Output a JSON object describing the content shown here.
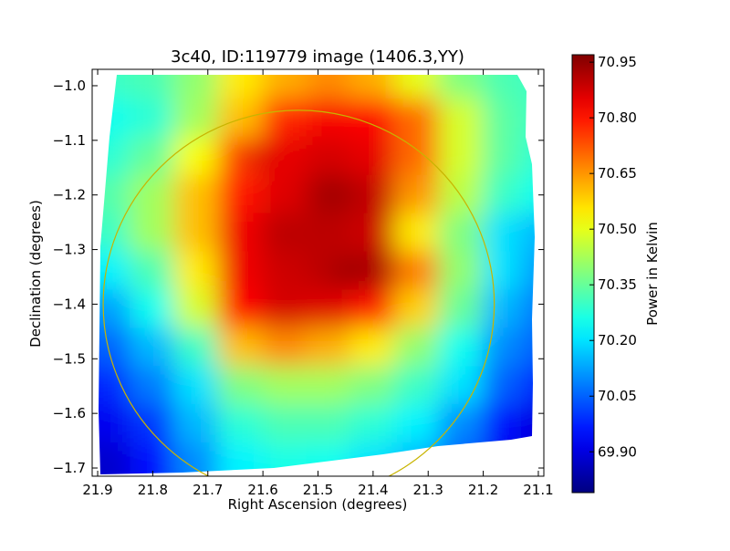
{
  "chart_data": {
    "type": "heatmap",
    "title": "3c40, ID:119779 image (1406.3,YY)",
    "xlabel": "Right Ascension (degrees)",
    "ylabel": "Declination (degrees)",
    "colorbar_label": "Power in Kelvin",
    "colormap": "jet",
    "xlim": [
      21.91,
      21.09
    ],
    "ylim": [
      -1.715,
      -0.97
    ],
    "x_ticks": [
      21.9,
      21.8,
      21.7,
      21.6,
      21.5,
      21.4,
      21.3,
      21.2,
      21.1
    ],
    "x_tick_labels": [
      "21.9",
      "21.8",
      "21.7",
      "21.6",
      "21.5",
      "21.4",
      "21.3",
      "21.2",
      "21.1"
    ],
    "y_ticks": [
      -1.0,
      -1.1,
      -1.2,
      -1.3,
      -1.4,
      -1.5,
      -1.6,
      -1.7
    ],
    "y_tick_labels": [
      "−1.0",
      "−1.1",
      "−1.2",
      "−1.3",
      "−1.4",
      "−1.5",
      "−1.6",
      "−1.7"
    ],
    "color_range": [
      69.79,
      70.97
    ],
    "colorbar_ticks": [
      69.9,
      70.05,
      70.2,
      70.35,
      70.5,
      70.65,
      70.8,
      70.95
    ],
    "colorbar_tick_labels": [
      "69.90",
      "70.05",
      "70.20",
      "70.35",
      "70.50",
      "70.65",
      "70.80",
      "70.95"
    ],
    "grid": false,
    "x_centers": [
      21.88,
      21.8,
      21.72,
      21.64,
      21.56,
      21.48,
      21.4,
      21.32,
      21.24,
      21.16,
      21.1
    ],
    "y_centers": [
      -0.99,
      -1.06,
      -1.13,
      -1.2,
      -1.27,
      -1.34,
      -1.41,
      -1.48,
      -1.55,
      -1.62,
      -1.69
    ],
    "values": [
      [
        70.3,
        70.32,
        70.4,
        70.55,
        70.62,
        70.66,
        70.62,
        70.5,
        70.38,
        70.32,
        70.3
      ],
      [
        70.25,
        70.28,
        70.42,
        70.6,
        70.78,
        70.83,
        70.82,
        70.7,
        70.48,
        70.34,
        70.3
      ],
      [
        70.28,
        70.35,
        70.52,
        70.74,
        70.85,
        70.87,
        70.85,
        70.7,
        70.48,
        70.34,
        70.28
      ],
      [
        70.33,
        70.42,
        70.6,
        70.8,
        70.86,
        70.92,
        70.9,
        70.65,
        70.45,
        70.3,
        70.25
      ],
      [
        70.3,
        70.42,
        70.6,
        70.84,
        70.9,
        70.9,
        70.88,
        70.55,
        70.38,
        70.2,
        70.15
      ],
      [
        70.22,
        70.32,
        70.55,
        70.84,
        70.88,
        70.9,
        70.92,
        70.68,
        70.4,
        70.2,
        70.12
      ],
      [
        70.12,
        70.25,
        70.48,
        70.82,
        70.87,
        70.86,
        70.8,
        70.58,
        70.35,
        70.15,
        70.08
      ],
      [
        70.05,
        70.15,
        70.3,
        70.6,
        70.66,
        70.62,
        70.55,
        70.4,
        70.25,
        70.1,
        70.05
      ],
      [
        69.98,
        70.08,
        70.2,
        70.38,
        70.42,
        70.42,
        70.38,
        70.3,
        70.2,
        70.05,
        69.98
      ],
      [
        69.92,
        70.0,
        70.15,
        70.28,
        70.32,
        70.32,
        70.28,
        70.22,
        70.1,
        69.95,
        69.9
      ],
      [
        69.88,
        69.95,
        70.1,
        70.22,
        70.26,
        70.25,
        70.2,
        70.15,
        70.05,
        69.92,
        69.88
      ]
    ],
    "hotspots": [
      {
        "x": 21.47,
        "y": -1.195,
        "value": 70.94
      },
      {
        "x": 21.45,
        "y": -1.345,
        "value": 70.95
      },
      {
        "x": 21.39,
        "y": -1.195,
        "value": 70.88
      },
      {
        "x": 21.545,
        "y": -1.27,
        "value": 70.9
      },
      {
        "x": 21.61,
        "y": -1.13,
        "value": 70.87
      }
    ],
    "circle": {
      "center_ra": 21.535,
      "center_dec": -1.4,
      "radius_deg": 0.355,
      "color": "#c8b400"
    }
  }
}
